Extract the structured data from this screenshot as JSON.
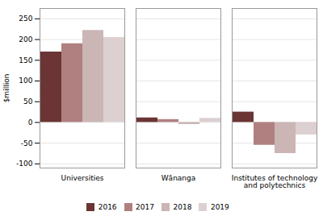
{
  "chart_data": {
    "type": "bar",
    "categories": [
      "Universities",
      "Wānanga",
      "Institutes of technology\nand polytechnics"
    ],
    "series": [
      {
        "name": "2016",
        "color": "#6b3535",
        "values": [
          170,
          11,
          25
        ]
      },
      {
        "name": "2017",
        "color": "#b08080",
        "values": [
          190,
          7,
          -55
        ]
      },
      {
        "name": "2018",
        "color": "#cbb5b5",
        "values": [
          222,
          -5,
          -75
        ]
      },
      {
        "name": "2019",
        "color": "#ddd0d0",
        "values": [
          205,
          10,
          -30
        ]
      }
    ],
    "ylabel": "$million",
    "ylim": [
      -110,
      275
    ],
    "yticks": [
      -100,
      -50,
      0,
      50,
      100,
      150,
      200,
      250
    ],
    "grid": true,
    "legend": "bottom"
  }
}
